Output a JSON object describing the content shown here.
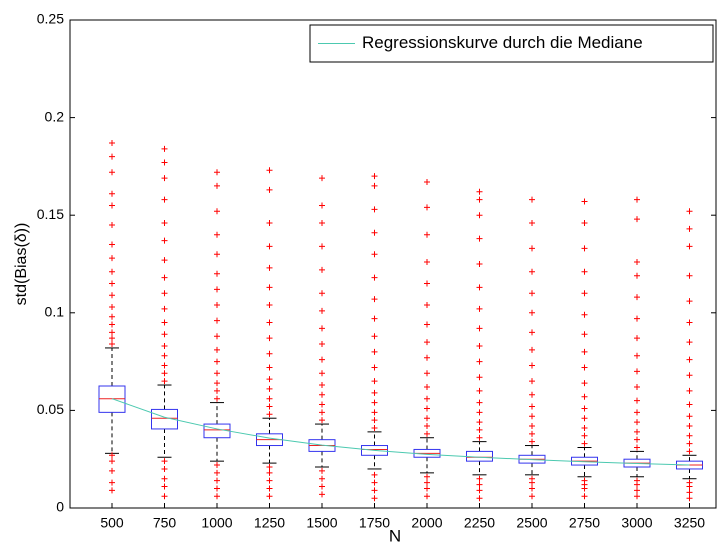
{
  "chart_data": {
    "type": "box",
    "x_label": "N",
    "y_label": "std(Bias(δ))",
    "categories": [
      "500",
      "750",
      "1000",
      "1250",
      "1500",
      "1750",
      "2000",
      "2250",
      "2500",
      "2750",
      "3000",
      "3250"
    ],
    "ylim": [
      0,
      0.25
    ],
    "yticks": [
      0,
      0.05,
      0.1,
      0.15,
      0.2,
      0.25
    ],
    "box_color": "#3333ee",
    "median_color": "#ee2222",
    "outlier_color": "#ff0000",
    "boxes": [
      {
        "min": 0.028,
        "q1": 0.049,
        "median": 0.056,
        "q3": 0.0625,
        "max": 0.082,
        "outliers": [
          0.009,
          0.013,
          0.019,
          0.024,
          0.027,
          0.084,
          0.087,
          0.09,
          0.094,
          0.098,
          0.103,
          0.109,
          0.115,
          0.121,
          0.128,
          0.135,
          0.145,
          0.155,
          0.161,
          0.172,
          0.18,
          0.187
        ]
      },
      {
        "min": 0.026,
        "q1": 0.0405,
        "median": 0.046,
        "q3": 0.0505,
        "max": 0.063,
        "outliers": [
          0.006,
          0.011,
          0.015,
          0.02,
          0.024,
          0.065,
          0.069,
          0.073,
          0.078,
          0.083,
          0.089,
          0.095,
          0.102,
          0.11,
          0.118,
          0.127,
          0.137,
          0.146,
          0.158,
          0.169,
          0.177,
          0.184
        ]
      },
      {
        "min": 0.024,
        "q1": 0.036,
        "median": 0.04,
        "q3": 0.043,
        "max": 0.054,
        "outliers": [
          0.006,
          0.01,
          0.014,
          0.018,
          0.022,
          0.056,
          0.06,
          0.064,
          0.069,
          0.075,
          0.081,
          0.088,
          0.096,
          0.104,
          0.112,
          0.12,
          0.13,
          0.14,
          0.152,
          0.165,
          0.172
        ]
      },
      {
        "min": 0.023,
        "q1": 0.032,
        "median": 0.035,
        "q3": 0.038,
        "max": 0.046,
        "outliers": [
          0.006,
          0.01,
          0.014,
          0.018,
          0.021,
          0.048,
          0.052,
          0.056,
          0.061,
          0.066,
          0.072,
          0.079,
          0.087,
          0.095,
          0.104,
          0.113,
          0.123,
          0.134,
          0.146,
          0.163,
          0.173
        ]
      },
      {
        "min": 0.021,
        "q1": 0.029,
        "median": 0.032,
        "q3": 0.035,
        "max": 0.043,
        "outliers": [
          0.007,
          0.011,
          0.015,
          0.019,
          0.045,
          0.049,
          0.053,
          0.058,
          0.063,
          0.069,
          0.076,
          0.084,
          0.092,
          0.101,
          0.11,
          0.122,
          0.134,
          0.146,
          0.155,
          0.169
        ]
      },
      {
        "min": 0.02,
        "q1": 0.027,
        "median": 0.03,
        "q3": 0.032,
        "max": 0.039,
        "outliers": [
          0.005,
          0.009,
          0.013,
          0.017,
          0.041,
          0.045,
          0.049,
          0.054,
          0.059,
          0.065,
          0.072,
          0.08,
          0.088,
          0.097,
          0.107,
          0.118,
          0.13,
          0.141,
          0.153,
          0.165,
          0.17
        ]
      },
      {
        "min": 0.018,
        "q1": 0.026,
        "median": 0.028,
        "q3": 0.03,
        "max": 0.036,
        "outliers": [
          0.006,
          0.01,
          0.013,
          0.016,
          0.038,
          0.042,
          0.046,
          0.051,
          0.056,
          0.062,
          0.069,
          0.077,
          0.085,
          0.094,
          0.104,
          0.115,
          0.126,
          0.14,
          0.154,
          0.167
        ]
      },
      {
        "min": 0.017,
        "q1": 0.024,
        "median": 0.026,
        "q3": 0.029,
        "max": 0.034,
        "outliers": [
          0.005,
          0.009,
          0.012,
          0.015,
          0.036,
          0.04,
          0.044,
          0.049,
          0.054,
          0.06,
          0.067,
          0.075,
          0.083,
          0.092,
          0.102,
          0.113,
          0.125,
          0.138,
          0.15,
          0.158,
          0.162
        ]
      },
      {
        "min": 0.017,
        "q1": 0.023,
        "median": 0.025,
        "q3": 0.027,
        "max": 0.032,
        "outliers": [
          0.006,
          0.01,
          0.013,
          0.015,
          0.034,
          0.038,
          0.042,
          0.047,
          0.052,
          0.058,
          0.065,
          0.073,
          0.081,
          0.09,
          0.1,
          0.11,
          0.121,
          0.133,
          0.146,
          0.158
        ]
      },
      {
        "min": 0.016,
        "q1": 0.022,
        "median": 0.024,
        "q3": 0.026,
        "max": 0.031,
        "outliers": [
          0.006,
          0.01,
          0.012,
          0.014,
          0.033,
          0.037,
          0.041,
          0.046,
          0.051,
          0.057,
          0.064,
          0.072,
          0.08,
          0.089,
          0.099,
          0.11,
          0.121,
          0.133,
          0.146,
          0.157
        ]
      },
      {
        "min": 0.016,
        "q1": 0.021,
        "median": 0.023,
        "q3": 0.025,
        "max": 0.029,
        "outliers": [
          0.006,
          0.009,
          0.012,
          0.014,
          0.031,
          0.035,
          0.039,
          0.044,
          0.049,
          0.055,
          0.062,
          0.07,
          0.078,
          0.087,
          0.097,
          0.108,
          0.119,
          0.126,
          0.148,
          0.158
        ]
      },
      {
        "min": 0.015,
        "q1": 0.02,
        "median": 0.022,
        "q3": 0.024,
        "max": 0.027,
        "outliers": [
          0.005,
          0.008,
          0.011,
          0.013,
          0.029,
          0.033,
          0.037,
          0.042,
          0.047,
          0.053,
          0.06,
          0.068,
          0.076,
          0.085,
          0.095,
          0.106,
          0.119,
          0.134,
          0.143,
          0.152
        ]
      }
    ],
    "series": [
      {
        "name": "Regressionskurve durch die Mediane",
        "color": "#4cc9b0",
        "values": [
          0.056,
          0.0465,
          0.0405,
          0.0358,
          0.0322,
          0.0295,
          0.0275,
          0.026,
          0.0248,
          0.0237,
          0.0228,
          0.022
        ]
      }
    ],
    "legend": "upper right"
  }
}
